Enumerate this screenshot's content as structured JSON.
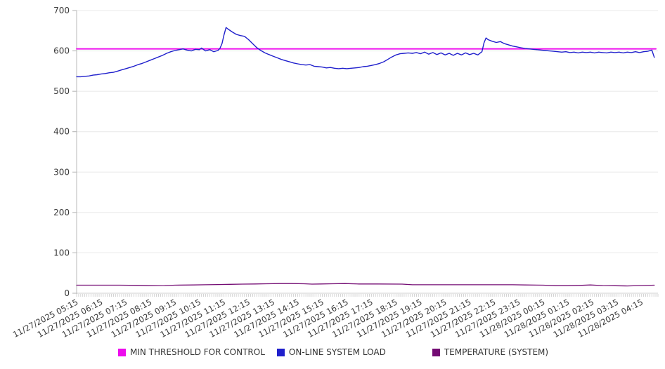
{
  "chart_data": {
    "type": "line",
    "title": "",
    "xlabel": "",
    "ylabel": "",
    "y_axis": {
      "min": 0,
      "max": 700,
      "ticks": [
        0,
        100,
        200,
        300,
        400,
        500,
        600,
        700
      ]
    },
    "x_axis": {
      "min": "11/27 05:15",
      "max": "11/28 04:55",
      "minor_tick_minutes": 5
    },
    "grid": "horizontal-only",
    "legend_position": "bottom",
    "x_labels": [
      "11/27/2025 05:15",
      "11/27/2025 06:15",
      "11/27/2025 07:15",
      "11/27/2025 08:15",
      "11/27/2025 09:15",
      "11/27/2025 10:15",
      "11/27/2025 11:15",
      "11/27/2025 12:15",
      "11/27/2025 13:15",
      "11/27/2025 14:15",
      "11/27/2025 15:15",
      "11/27/2025 16:15",
      "11/27/2025 17:15",
      "11/27/2025 18:15",
      "11/27/2025 19:15",
      "11/27/2025 20:15",
      "11/27/2025 21:15",
      "11/27/2025 22:15",
      "11/27/2025 23:15",
      "11/28/2025 00:15",
      "11/28/2025 01:15",
      "11/28/2025 02:15",
      "11/28/2025 03:15",
      "11/28/2025 04:15"
    ],
    "series": [
      {
        "name": "MIN THRESHOLD FOR CONTROL",
        "color": "#ED0CED",
        "points": [
          [
            "11/27 05:15",
            605
          ],
          [
            "11/28 04:50",
            605
          ]
        ]
      },
      {
        "name": "ON-LINE SYSTEM LOAD",
        "color": "#1F1FCC",
        "points": [
          [
            "11/27 05:15",
            536
          ],
          [
            "11/27 05:25",
            536
          ],
          [
            "11/27 05:35",
            537
          ],
          [
            "11/27 05:45",
            538
          ],
          [
            "11/27 05:55",
            540
          ],
          [
            "11/27 06:05",
            541
          ],
          [
            "11/27 06:15",
            543
          ],
          [
            "11/27 06:25",
            544
          ],
          [
            "11/27 06:35",
            546
          ],
          [
            "11/27 06:45",
            547
          ],
          [
            "11/27 06:55",
            550
          ],
          [
            "11/27 07:05",
            553
          ],
          [
            "11/27 07:15",
            556
          ],
          [
            "11/27 07:25",
            559
          ],
          [
            "11/27 07:35",
            562
          ],
          [
            "11/27 07:45",
            566
          ],
          [
            "11/27 07:55",
            569
          ],
          [
            "11/27 08:05",
            573
          ],
          [
            "11/27 08:15",
            577
          ],
          [
            "11/27 08:25",
            581
          ],
          [
            "11/27 08:35",
            585
          ],
          [
            "11/27 08:45",
            589
          ],
          [
            "11/27 08:55",
            594
          ],
          [
            "11/27 09:05",
            598
          ],
          [
            "11/27 09:15",
            601
          ],
          [
            "11/27 09:25",
            603
          ],
          [
            "11/27 09:35",
            605
          ],
          [
            "11/27 09:45",
            602
          ],
          [
            "11/27 09:55",
            600
          ],
          [
            "11/27 10:05",
            604
          ],
          [
            "11/27 10:15",
            603
          ],
          [
            "11/27 10:20",
            607
          ],
          [
            "11/27 10:30",
            600
          ],
          [
            "11/27 10:40",
            603
          ],
          [
            "11/27 10:50",
            598
          ],
          [
            "11/27 11:00",
            601
          ],
          [
            "11/27 11:05",
            606
          ],
          [
            "11/27 11:10",
            618
          ],
          [
            "11/27 11:15",
            640
          ],
          [
            "11/27 11:20",
            658
          ],
          [
            "11/27 11:25",
            654
          ],
          [
            "11/27 11:35",
            647
          ],
          [
            "11/27 11:45",
            641
          ],
          [
            "11/27 11:55",
            638
          ],
          [
            "11/27 12:05",
            636
          ],
          [
            "11/27 12:15",
            628
          ],
          [
            "11/27 12:25",
            618
          ],
          [
            "11/27 12:35",
            608
          ],
          [
            "11/27 12:45",
            601
          ],
          [
            "11/27 12:55",
            595
          ],
          [
            "11/27 13:05",
            591
          ],
          [
            "11/27 13:15",
            587
          ],
          [
            "11/27 13:25",
            583
          ],
          [
            "11/27 13:35",
            579
          ],
          [
            "11/27 13:45",
            576
          ],
          [
            "11/27 13:55",
            573
          ],
          [
            "11/27 14:05",
            570
          ],
          [
            "11/27 14:15",
            568
          ],
          [
            "11/27 14:25",
            566
          ],
          [
            "11/27 14:35",
            565
          ],
          [
            "11/27 14:45",
            566
          ],
          [
            "11/27 14:55",
            562
          ],
          [
            "11/27 15:05",
            561
          ],
          [
            "11/27 15:15",
            560
          ],
          [
            "11/27 15:25",
            558
          ],
          [
            "11/27 15:35",
            559
          ],
          [
            "11/27 15:45",
            557
          ],
          [
            "11/27 15:55",
            556
          ],
          [
            "11/27 16:05",
            557
          ],
          [
            "11/27 16:15",
            556
          ],
          [
            "11/27 16:25",
            557
          ],
          [
            "11/27 16:35",
            558
          ],
          [
            "11/27 16:45",
            559
          ],
          [
            "11/27 16:55",
            561
          ],
          [
            "11/27 17:05",
            562
          ],
          [
            "11/27 17:15",
            564
          ],
          [
            "11/27 17:25",
            566
          ],
          [
            "11/27 17:35",
            569
          ],
          [
            "11/27 17:45",
            573
          ],
          [
            "11/27 17:55",
            579
          ],
          [
            "11/27 18:05",
            585
          ],
          [
            "11/27 18:15",
            590
          ],
          [
            "11/27 18:25",
            593
          ],
          [
            "11/27 18:35",
            594
          ],
          [
            "11/27 18:45",
            595
          ],
          [
            "11/27 18:55",
            594
          ],
          [
            "11/27 19:05",
            596
          ],
          [
            "11/27 19:15",
            593
          ],
          [
            "11/27 19:25",
            597
          ],
          [
            "11/27 19:35",
            592
          ],
          [
            "11/27 19:45",
            596
          ],
          [
            "11/27 19:55",
            591
          ],
          [
            "11/27 20:05",
            595
          ],
          [
            "11/27 20:15",
            590
          ],
          [
            "11/27 20:25",
            594
          ],
          [
            "11/27 20:35",
            589
          ],
          [
            "11/27 20:45",
            594
          ],
          [
            "11/27 20:55",
            590
          ],
          [
            "11/27 21:05",
            595
          ],
          [
            "11/27 21:15",
            591
          ],
          [
            "11/27 21:25",
            594
          ],
          [
            "11/27 21:35",
            590
          ],
          [
            "11/27 21:45",
            598
          ],
          [
            "11/27 21:50",
            620
          ],
          [
            "11/27 21:55",
            632
          ],
          [
            "11/27 22:00",
            628
          ],
          [
            "11/27 22:10",
            624
          ],
          [
            "11/27 22:20",
            621
          ],
          [
            "11/27 22:30",
            623
          ],
          [
            "11/27 22:40",
            618
          ],
          [
            "11/27 22:50",
            615
          ],
          [
            "11/27 23:00",
            612
          ],
          [
            "11/27 23:10",
            610
          ],
          [
            "11/27 23:20",
            608
          ],
          [
            "11/27 23:30",
            606
          ],
          [
            "11/27 23:40",
            605
          ],
          [
            "11/27 23:50",
            604
          ],
          [
            "11/28 00:00",
            603
          ],
          [
            "11/28 00:10",
            602
          ],
          [
            "11/28 00:20",
            601
          ],
          [
            "11/28 00:30",
            600
          ],
          [
            "11/28 00:40",
            599
          ],
          [
            "11/28 00:50",
            598
          ],
          [
            "11/28 01:00",
            597
          ],
          [
            "11/28 01:10",
            598
          ],
          [
            "11/28 01:20",
            596
          ],
          [
            "11/28 01:30",
            597
          ],
          [
            "11/28 01:40",
            595
          ],
          [
            "11/28 01:50",
            597
          ],
          [
            "11/28 02:00",
            596
          ],
          [
            "11/28 02:10",
            597
          ],
          [
            "11/28 02:20",
            595
          ],
          [
            "11/28 02:30",
            597
          ],
          [
            "11/28 02:40",
            596
          ],
          [
            "11/28 02:50",
            595
          ],
          [
            "11/28 03:00",
            597
          ],
          [
            "11/28 03:10",
            596
          ],
          [
            "11/28 03:20",
            597
          ],
          [
            "11/28 03:30",
            595
          ],
          [
            "11/28 03:40",
            597
          ],
          [
            "11/28 03:50",
            596
          ],
          [
            "11/28 04:00",
            598
          ],
          [
            "11/28 04:10",
            596
          ],
          [
            "11/28 04:20",
            598
          ],
          [
            "11/28 04:30",
            599
          ],
          [
            "11/28 04:40",
            602
          ],
          [
            "11/28 04:46",
            584
          ]
        ]
      },
      {
        "name": "TEMPERATURE (SYSTEM)",
        "color": "#730B73",
        "points": [
          [
            "11/27 05:15",
            20
          ],
          [
            "11/27 06:00",
            20
          ],
          [
            "11/27 07:00",
            20
          ],
          [
            "11/27 07:45",
            19.5
          ],
          [
            "11/27 08:10",
            18.5
          ],
          [
            "11/27 08:50",
            19
          ],
          [
            "11/27 09:15",
            20
          ],
          [
            "11/27 10:00",
            20.5
          ],
          [
            "11/27 10:30",
            21
          ],
          [
            "11/27 11:00",
            21.5
          ],
          [
            "11/27 11:30",
            22
          ],
          [
            "11/27 12:00",
            22.5
          ],
          [
            "11/27 12:30",
            23
          ],
          [
            "11/27 13:00",
            23.5
          ],
          [
            "11/27 13:30",
            24
          ],
          [
            "11/27 14:00",
            24
          ],
          [
            "11/27 14:30",
            23.5
          ],
          [
            "11/27 14:50",
            22.5
          ],
          [
            "11/27 15:10",
            23
          ],
          [
            "11/27 15:40",
            23.5
          ],
          [
            "11/27 16:10",
            24
          ],
          [
            "11/27 16:45",
            23
          ],
          [
            "11/27 17:30",
            23
          ],
          [
            "11/27 18:30",
            22.5
          ],
          [
            "11/27 18:55",
            21
          ],
          [
            "11/27 20:00",
            21
          ],
          [
            "11/27 21:00",
            21
          ],
          [
            "11/27 22:00",
            21
          ],
          [
            "11/27 23:00",
            21
          ],
          [
            "11/27 23:30",
            20.5
          ],
          [
            "11/28 00:15",
            20
          ],
          [
            "11/28 00:45",
            18.5
          ],
          [
            "11/28 01:15",
            18.5
          ],
          [
            "11/28 01:45",
            19.5
          ],
          [
            "11/28 02:10",
            20.5
          ],
          [
            "11/28 02:40",
            19
          ],
          [
            "11/28 03:10",
            18.5
          ],
          [
            "11/28 03:40",
            18
          ],
          [
            "11/28 04:10",
            19
          ],
          [
            "11/28 04:46",
            20
          ]
        ]
      }
    ]
  }
}
